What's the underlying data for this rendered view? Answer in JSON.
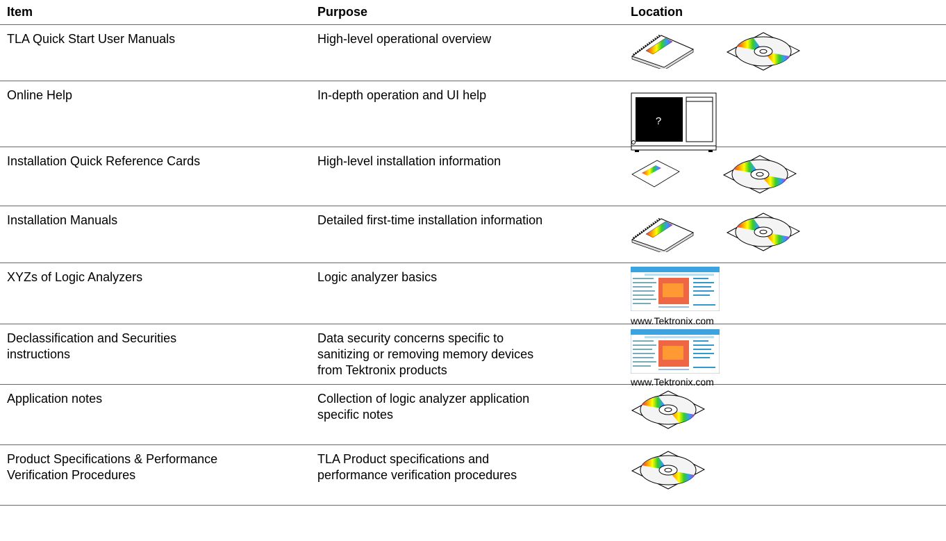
{
  "table": {
    "header": [
      "Item",
      "Purpose",
      "Location"
    ],
    "rows": [
      {
        "item": [
          "TLA Quick Start User Manuals"
        ],
        "purpose": [
          "High-level operational overview"
        ]
      },
      {
        "item": [
          "Online Help"
        ],
        "purpose": [
          "In-depth operation and UI help"
        ],
        "screen_text": "?"
      },
      {
        "item": [
          "Installation Quick Reference Cards"
        ],
        "purpose": [
          "High-level installation information"
        ]
      },
      {
        "item": [
          "Installation Manuals"
        ],
        "purpose": [
          "Detailed first-time installation information"
        ]
      },
      {
        "item": [
          "XYZs of Logic Analyzers"
        ],
        "purpose": [
          "Logic analyzer basics"
        ],
        "location_note": "www.Tektronix.com"
      },
      {
        "item": [
          "Declassification and Securities",
          "instructions"
        ],
        "purpose": [
          "Data security concerns specific to",
          "sanitizing or removing memory devices",
          "from Tektronix products"
        ],
        "location_note": "www.Tektronix.com"
      },
      {
        "item": [
          "Application notes"
        ],
        "purpose": [
          "Collection of logic analyzer application",
          "specific notes"
        ]
      },
      {
        "item": [
          "Product Specifications & Performance",
          "Verification Procedures"
        ],
        "purpose": [
          "TLA Product specifications and",
          "performance verification procedures"
        ]
      }
    ]
  }
}
